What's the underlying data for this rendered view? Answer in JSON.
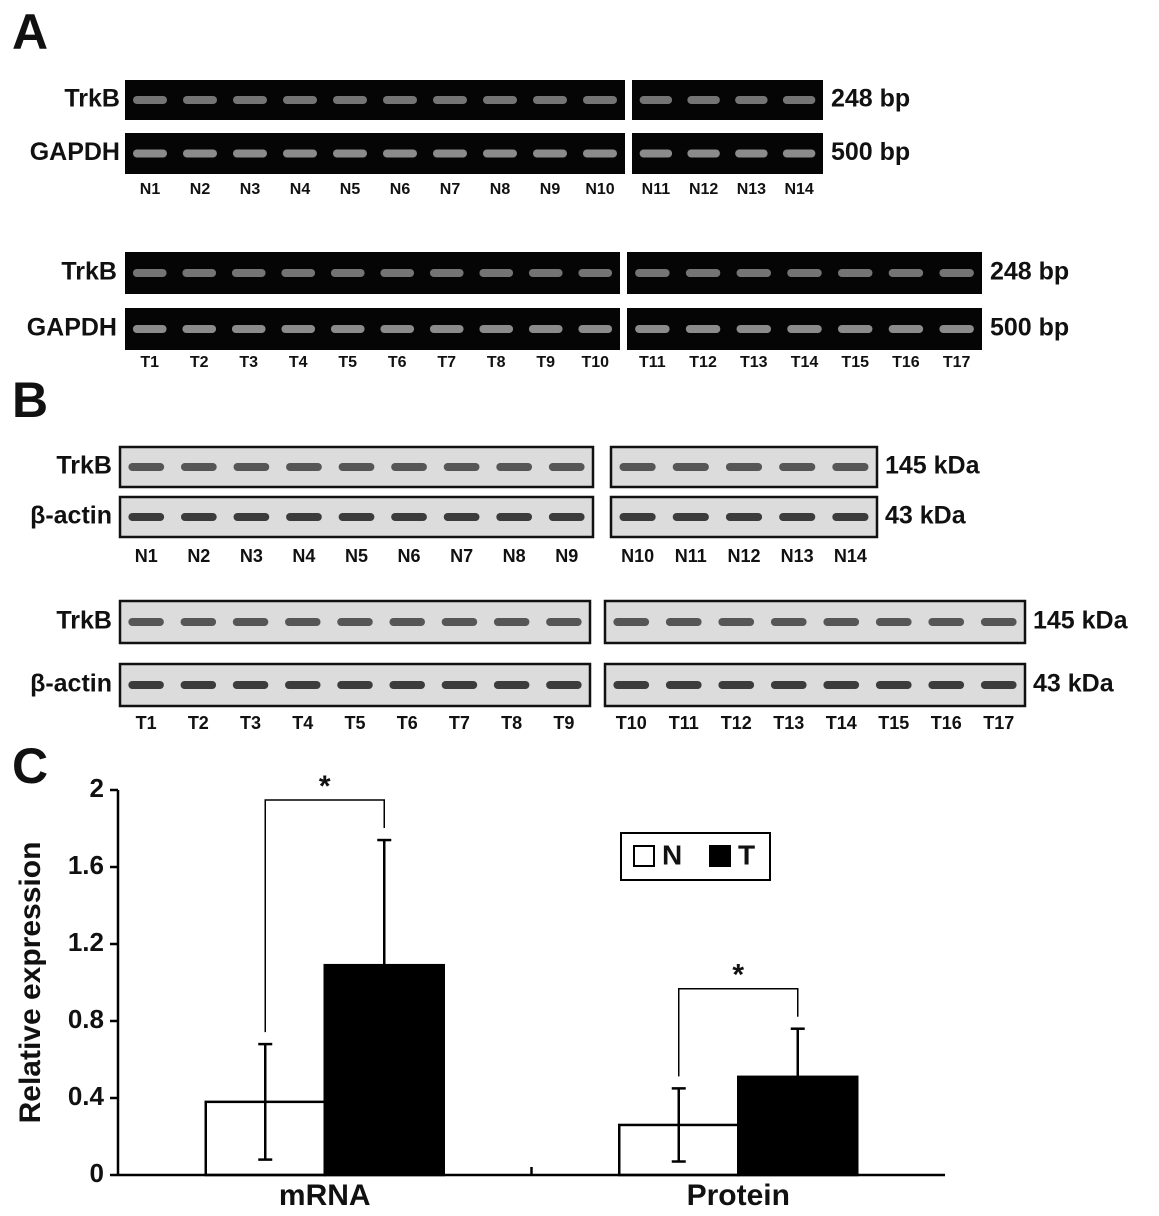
{
  "panel_a": {
    "label": "A",
    "gels": [
      {
        "rows": [
          {
            "name": "TrkB",
            "size": "248 bp"
          },
          {
            "name": "GAPDH",
            "size": "500 bp"
          }
        ],
        "lanes": [
          [
            "N1",
            "N2",
            "N3",
            "N4",
            "N5",
            "N6",
            "N7",
            "N8",
            "N9",
            "N10"
          ],
          [
            "N11",
            "N12",
            "N13",
            "N14"
          ]
        ]
      },
      {
        "rows": [
          {
            "name": "TrkB",
            "size": "248 bp"
          },
          {
            "name": "GAPDH",
            "size": "500 bp"
          }
        ],
        "lanes": [
          [
            "T1",
            "T2",
            "T3",
            "T4",
            "T5",
            "T6",
            "T7",
            "T8",
            "T9",
            "T10"
          ],
          [
            "T11",
            "T12",
            "T13",
            "T14",
            "T15",
            "T16",
            "T17"
          ]
        ]
      }
    ]
  },
  "panel_b": {
    "label": "B",
    "gels": [
      {
        "rows": [
          {
            "name": "TrkB",
            "size": "145 kDa"
          },
          {
            "name": "β-actin",
            "size": "43 kDa"
          }
        ],
        "lanes": [
          [
            "N1",
            "N2",
            "N3",
            "N4",
            "N5",
            "N6",
            "N7",
            "N8",
            "N9"
          ],
          [
            "N10",
            "N11",
            "N12",
            "N13",
            "N14"
          ]
        ]
      },
      {
        "rows": [
          {
            "name": "TrkB",
            "size": "145 kDa"
          },
          {
            "name": "β-actin",
            "size": "43 kDa"
          }
        ],
        "lanes": [
          [
            "T1",
            "T2",
            "T3",
            "T4",
            "T5",
            "T6",
            "T7",
            "T8",
            "T9"
          ],
          [
            "T10",
            "T11",
            "T12",
            "T13",
            "T14",
            "T15",
            "T16",
            "T17"
          ]
        ]
      }
    ]
  },
  "chart_data": {
    "type": "bar",
    "panel_label": "C",
    "y_label": "Relative expression",
    "categories": [
      "mRNA",
      "Protein"
    ],
    "series": [
      {
        "name": "N",
        "color": "#ffffff",
        "values": [
          0.38,
          0.26
        ],
        "errors": [
          0.3,
          0.19
        ]
      },
      {
        "name": "T",
        "color": "#000000",
        "values": [
          1.09,
          0.51
        ],
        "errors": [
          0.65,
          0.25
        ]
      }
    ],
    "significance": [
      "*",
      "*"
    ],
    "ylim": [
      0,
      2
    ],
    "yticks": [
      0,
      0.4,
      0.8,
      1.2,
      1.6,
      2
    ]
  }
}
